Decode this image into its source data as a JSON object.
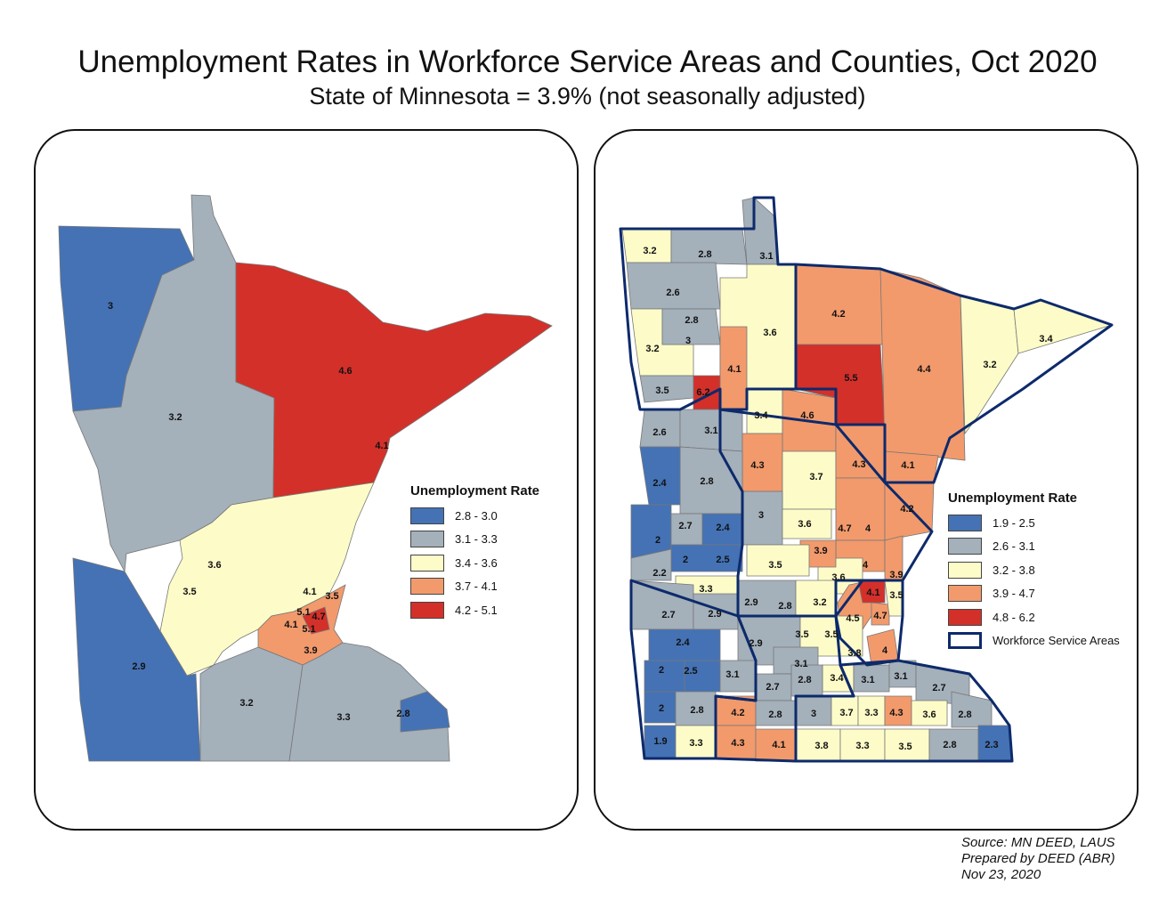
{
  "title": "Unemployment Rates in Workforce Service Areas and Counties, Oct 2020",
  "subtitle": "State of Minnesota = 3.9% (not seasonally adjusted)",
  "colors": {
    "c1": "#4472b5",
    "c2": "#a4b0ba",
    "c3": "#fdfcc8",
    "c4": "#f29a6c",
    "c5": "#d3302a",
    "wsa_outline": "#0d2a6b"
  },
  "left_map": {
    "legend": {
      "title": "Unemployment Rate",
      "items": [
        {
          "label": "2.8 - 3.0",
          "color": "#4472b5"
        },
        {
          "label": "3.1 - 3.3",
          "color": "#a4b0ba"
        },
        {
          "label": "3.4 - 3.6",
          "color": "#fdfcc8"
        },
        {
          "label": "3.7 - 4.1",
          "color": "#f29a6c"
        },
        {
          "label": "4.2 - 5.1",
          "color": "#d3302a"
        }
      ]
    },
    "labels": [
      "3",
      "4.6",
      "3.2",
      "4.1",
      "3.6",
      "3.5",
      "4.1",
      "3.5",
      "5.1",
      "4.7",
      "4.1",
      "5.1",
      "3.9",
      "2.9",
      "3.2",
      "3.3",
      "2.8"
    ]
  },
  "right_map": {
    "legend": {
      "title": "Unemployment Rate",
      "items": [
        {
          "label": "1.9 - 2.5",
          "color": "#4472b5"
        },
        {
          "label": "2.6 - 3.1",
          "color": "#a4b0ba"
        },
        {
          "label": "3.2 - 3.8",
          "color": "#fdfcc8"
        },
        {
          "label": "3.9 - 4.7",
          "color": "#f29a6c"
        },
        {
          "label": "4.8 - 6.2",
          "color": "#d3302a"
        }
      ],
      "boundary_label": "Workforce Service Areas"
    },
    "labels": [
      "3.2",
      "2.8",
      "3.1",
      "2.6",
      "2.8",
      "3",
      "3.2",
      "3.6",
      "4.2",
      "3.4",
      "3.2",
      "4.1",
      "5.5",
      "4.4",
      "3.5",
      "6.2",
      "3.4",
      "4.6",
      "2.6",
      "3.1",
      "4.3",
      "4.3",
      "4.1",
      "3.7",
      "2.4",
      "2.8",
      "3",
      "2.7",
      "2.4",
      "3.6",
      "4.7",
      "4",
      "4.2",
      "2",
      "2",
      "2.5",
      "3.9",
      "3.5",
      "4",
      "2.2",
      "3.6",
      "3.9",
      "3.3",
      "4.1",
      "3.5",
      "2.9",
      "2.8",
      "3.2",
      "4.5",
      "4.7",
      "2.7",
      "2.9",
      "2.9",
      "3.5",
      "3.5",
      "2.4",
      "3.8",
      "4",
      "3.1",
      "2",
      "2.5",
      "3.1",
      "3.4",
      "3.1",
      "3.1",
      "2.7",
      "2.8",
      "2.7",
      "2",
      "2.8",
      "4.2",
      "2.8",
      "3",
      "3.7",
      "3.3",
      "4.3",
      "3.6",
      "2.8",
      "1.9",
      "3.3",
      "4.3",
      "4.1",
      "3.8",
      "3.3",
      "3.5",
      "2.8",
      "2.3"
    ]
  },
  "source": {
    "line1": "Source: MN DEED, LAUS",
    "line2": "Prepared by DEED (ABR)",
    "line3": "Nov 23, 2020"
  }
}
